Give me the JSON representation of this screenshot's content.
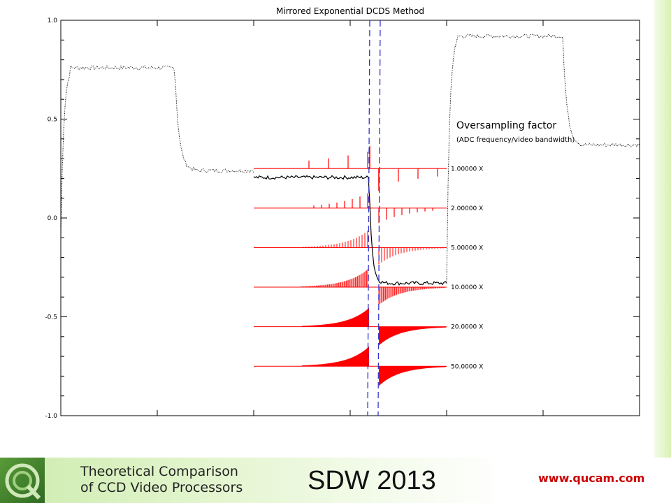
{
  "chart_data": {
    "type": "line",
    "title": "Mirrored Exponential DCDS Method",
    "ylim": [
      -1.0,
      1.0
    ],
    "y_ticks": [
      "1.0",
      "0.5",
      "0.0",
      "-0.5",
      "-1.0"
    ],
    "y_tick_values": [
      1.0,
      0.5,
      0.0,
      -0.5,
      -1.0
    ],
    "x_axis_labels": "none",
    "video_signal_levels": {
      "first_pulse": 0.76,
      "reference": 0.24,
      "after_transition": -0.33,
      "second_pulse": 0.92,
      "tail": 0.37
    },
    "annotation": {
      "title": "Oversampling factor",
      "subtitle": "(ADC frequency/video bandwidth)"
    },
    "weight_series": [
      {
        "factor": "1.00000 X",
        "baseline": 0.25
      },
      {
        "factor": "2.00000 X",
        "baseline": 0.05
      },
      {
        "factor": "5.00000 X",
        "baseline": -0.15
      },
      {
        "factor": "10.0000 X",
        "baseline": -0.35
      },
      {
        "factor": "20.0000 X",
        "baseline": -0.55
      },
      {
        "factor": "50.0000 X",
        "baseline": -0.75
      }
    ],
    "colors": {
      "weights": "#ff0000",
      "markers": "#3333cc",
      "signal": "#000000"
    }
  },
  "footer": {
    "subtitle_line1": "Theoretical Comparison",
    "subtitle_line2": "of CCD Video Processors",
    "event": "SDW 2013",
    "url": "www.qucam.com"
  }
}
